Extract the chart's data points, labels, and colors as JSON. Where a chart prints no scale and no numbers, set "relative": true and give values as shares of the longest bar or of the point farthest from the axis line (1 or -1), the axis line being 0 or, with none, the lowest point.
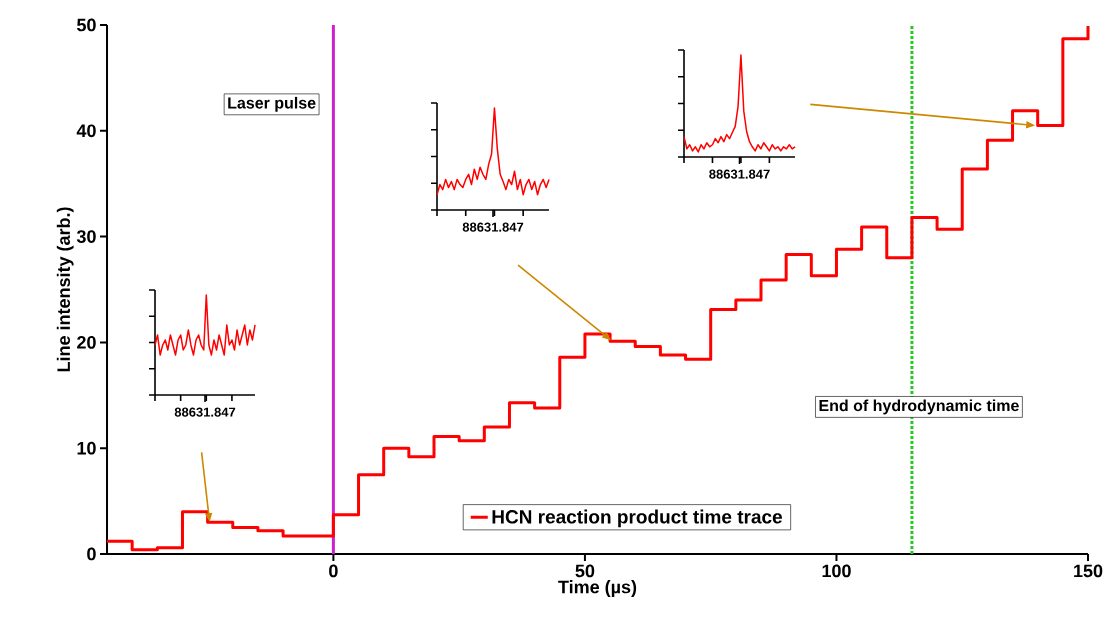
{
  "chart_data": [
    {
      "type": "step",
      "xlabel": "Time (µs)",
      "ylabel": "Line intensity (arb.)",
      "xlim": [
        -45,
        150
      ],
      "ylim": [
        0,
        50
      ],
      "xticks": [
        0,
        50,
        100,
        150
      ],
      "yticks": [
        0,
        10,
        20,
        30,
        40,
        50
      ],
      "legend": "bottom",
      "x": [
        -45,
        -40,
        -35,
        -30,
        -25,
        -20,
        -15,
        -10,
        -5,
        0,
        5,
        10,
        15,
        20,
        25,
        30,
        35,
        40,
        45,
        50,
        55,
        60,
        65,
        70,
        75,
        80,
        85,
        90,
        95,
        100,
        105,
        110,
        115,
        120,
        125,
        130,
        135,
        140,
        145,
        150
      ],
      "series": [
        {
          "name": "HCN reaction product time trace",
          "color": "#ff0000",
          "values": [
            1.2,
            0.4,
            0.6,
            4.0,
            3.0,
            2.5,
            2.2,
            1.7,
            1.7,
            3.7,
            7.5,
            10.0,
            9.2,
            11.1,
            10.7,
            12.0,
            14.3,
            13.8,
            18.6,
            20.8,
            20.1,
            19.6,
            18.8,
            18.4,
            23.1,
            24.0,
            25.9,
            28.3,
            26.3,
            28.8,
            30.9,
            28.0,
            31.8,
            30.7,
            36.4,
            39.1,
            41.9,
            40.5,
            48.7,
            49.9
          ]
        }
      ],
      "ref_lines": [
        {
          "axis": "x",
          "value": 0,
          "label": "Laser pulse",
          "color": "#cc22cc",
          "line_style": "solid"
        },
        {
          "axis": "x",
          "value": 115,
          "label": "End of hydrodynamic time",
          "color": "#22cc22",
          "line_style": "dotted"
        }
      ]
    },
    {
      "type": "line",
      "relative": true,
      "color": "#ff0000",
      "annotations": [
        "88631.847"
      ],
      "categories": [
        null,
        null,
        null,
        null,
        null,
        null,
        null,
        null,
        null,
        null,
        null,
        null,
        null,
        null,
        null,
        null,
        null,
        null,
        null,
        null,
        null,
        null,
        null,
        null,
        null,
        null,
        null,
        null,
        null,
        null,
        null,
        null,
        null,
        null,
        null,
        null,
        null,
        null,
        null,
        null
      ],
      "values": [
        0.5,
        0.6,
        0.4,
        0.5,
        0.55,
        0.45,
        0.6,
        0.5,
        0.4,
        0.55,
        0.6,
        0.45,
        0.5,
        0.65,
        0.5,
        0.4,
        0.55,
        0.6,
        0.5,
        0.45,
        1.0,
        0.5,
        0.4,
        0.55,
        0.45,
        0.6,
        0.5,
        0.4,
        0.7,
        0.5,
        0.55,
        0.45,
        0.65,
        0.5,
        0.6,
        0.7,
        0.5,
        0.65,
        0.55,
        0.7
      ]
    },
    {
      "type": "line",
      "relative": true,
      "color": "#ff0000",
      "annotations": [
        "88631.847"
      ],
      "categories": [
        null,
        null,
        null,
        null,
        null,
        null,
        null,
        null,
        null,
        null,
        null,
        null,
        null,
        null,
        null,
        null,
        null,
        null,
        null,
        null,
        null,
        null,
        null,
        null,
        null,
        null,
        null,
        null,
        null,
        null,
        null,
        null,
        null,
        null,
        null,
        null,
        null,
        null,
        null,
        null
      ],
      "values": [
        0.15,
        0.25,
        0.2,
        0.3,
        0.22,
        0.28,
        0.2,
        0.3,
        0.25,
        0.22,
        0.3,
        0.35,
        0.25,
        0.4,
        0.3,
        0.42,
        0.35,
        0.3,
        0.45,
        0.55,
        1.0,
        0.6,
        0.35,
        0.28,
        0.2,
        0.3,
        0.25,
        0.38,
        0.2,
        0.3,
        0.15,
        0.25,
        0.3,
        0.2,
        0.28,
        0.15,
        0.25,
        0.3,
        0.22,
        0.3
      ]
    },
    {
      "type": "line",
      "relative": true,
      "color": "#ff0000",
      "annotations": [
        "88631.847"
      ],
      "categories": [
        null,
        null,
        null,
        null,
        null,
        null,
        null,
        null,
        null,
        null,
        null,
        null,
        null,
        null,
        null,
        null,
        null,
        null,
        null,
        null,
        null,
        null,
        null,
        null,
        null,
        null,
        null,
        null,
        null,
        null,
        null,
        null,
        null,
        null,
        null,
        null,
        null,
        null,
        null,
        null
      ],
      "values": [
        0.2,
        0.08,
        0.12,
        0.06,
        0.1,
        0.05,
        0.12,
        0.08,
        0.14,
        0.1,
        0.12,
        0.18,
        0.14,
        0.2,
        0.15,
        0.22,
        0.18,
        0.24,
        0.3,
        0.5,
        1.0,
        0.45,
        0.25,
        0.15,
        0.1,
        0.06,
        0.12,
        0.08,
        0.14,
        0.1,
        0.06,
        0.12,
        0.08,
        0.1,
        0.06,
        0.1,
        0.08,
        0.12,
        0.08,
        0.1
      ]
    }
  ]
}
